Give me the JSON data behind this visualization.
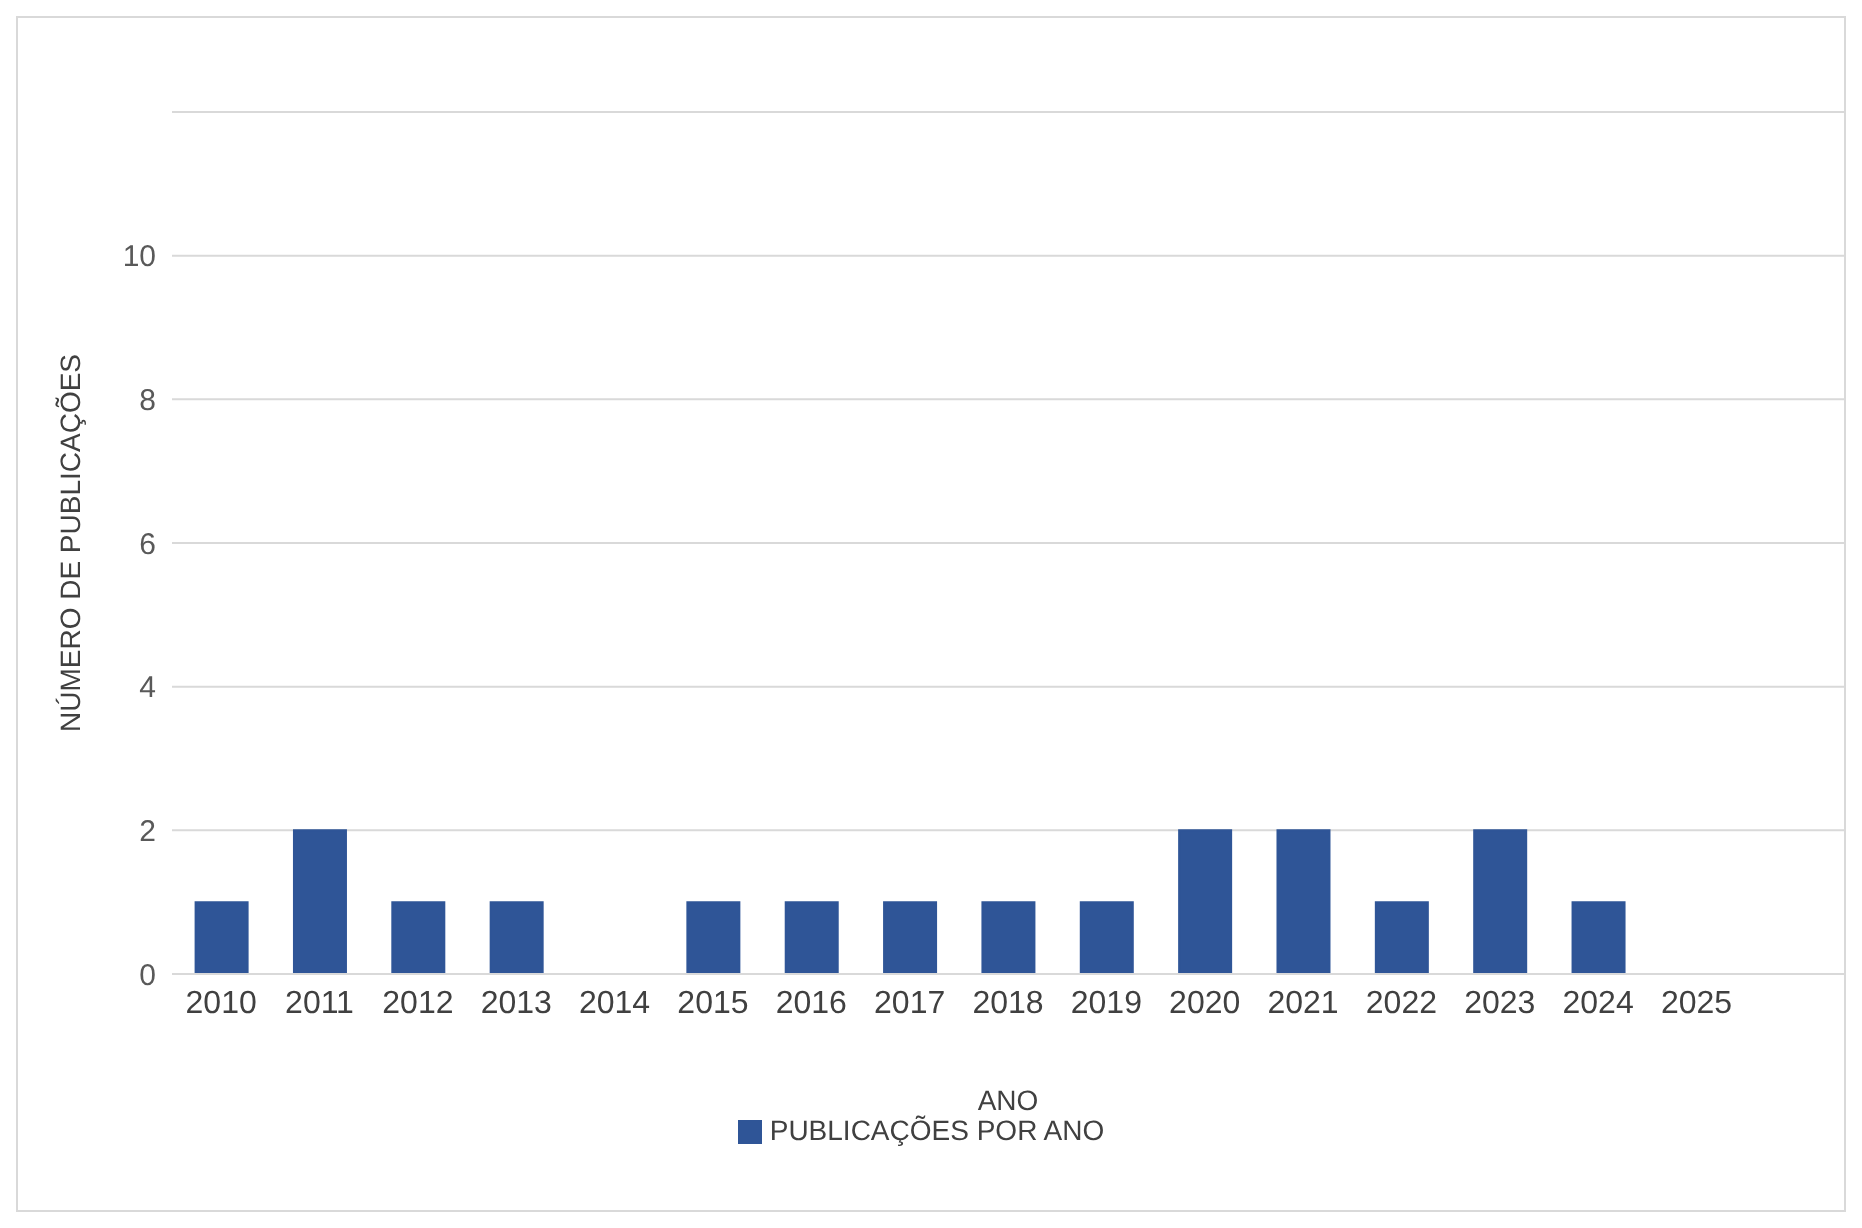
{
  "chart_data": {
    "type": "bar",
    "xlabel": "ANO",
    "ylabel": "NÚMERO DE PUBLICAÇÕES",
    "categories": [
      "2010",
      "2011",
      "2012",
      "2013",
      "2014",
      "2015",
      "2016",
      "2017",
      "2018",
      "2019",
      "2020",
      "2021",
      "2022",
      "2023",
      "2024",
      "2025",
      null
    ],
    "series": [
      {
        "name": "PUBLICAÇÕES POR ANO",
        "color": "#2f5597",
        "values": [
          1,
          2,
          1,
          1,
          0,
          1,
          1,
          1,
          1,
          1,
          2,
          2,
          1,
          2,
          1,
          0,
          null
        ]
      }
    ],
    "ylim": [
      0,
      12
    ],
    "yticks": [
      0,
      2,
      4,
      6,
      8,
      10
    ],
    "grid": "y",
    "legend": "bottom"
  }
}
